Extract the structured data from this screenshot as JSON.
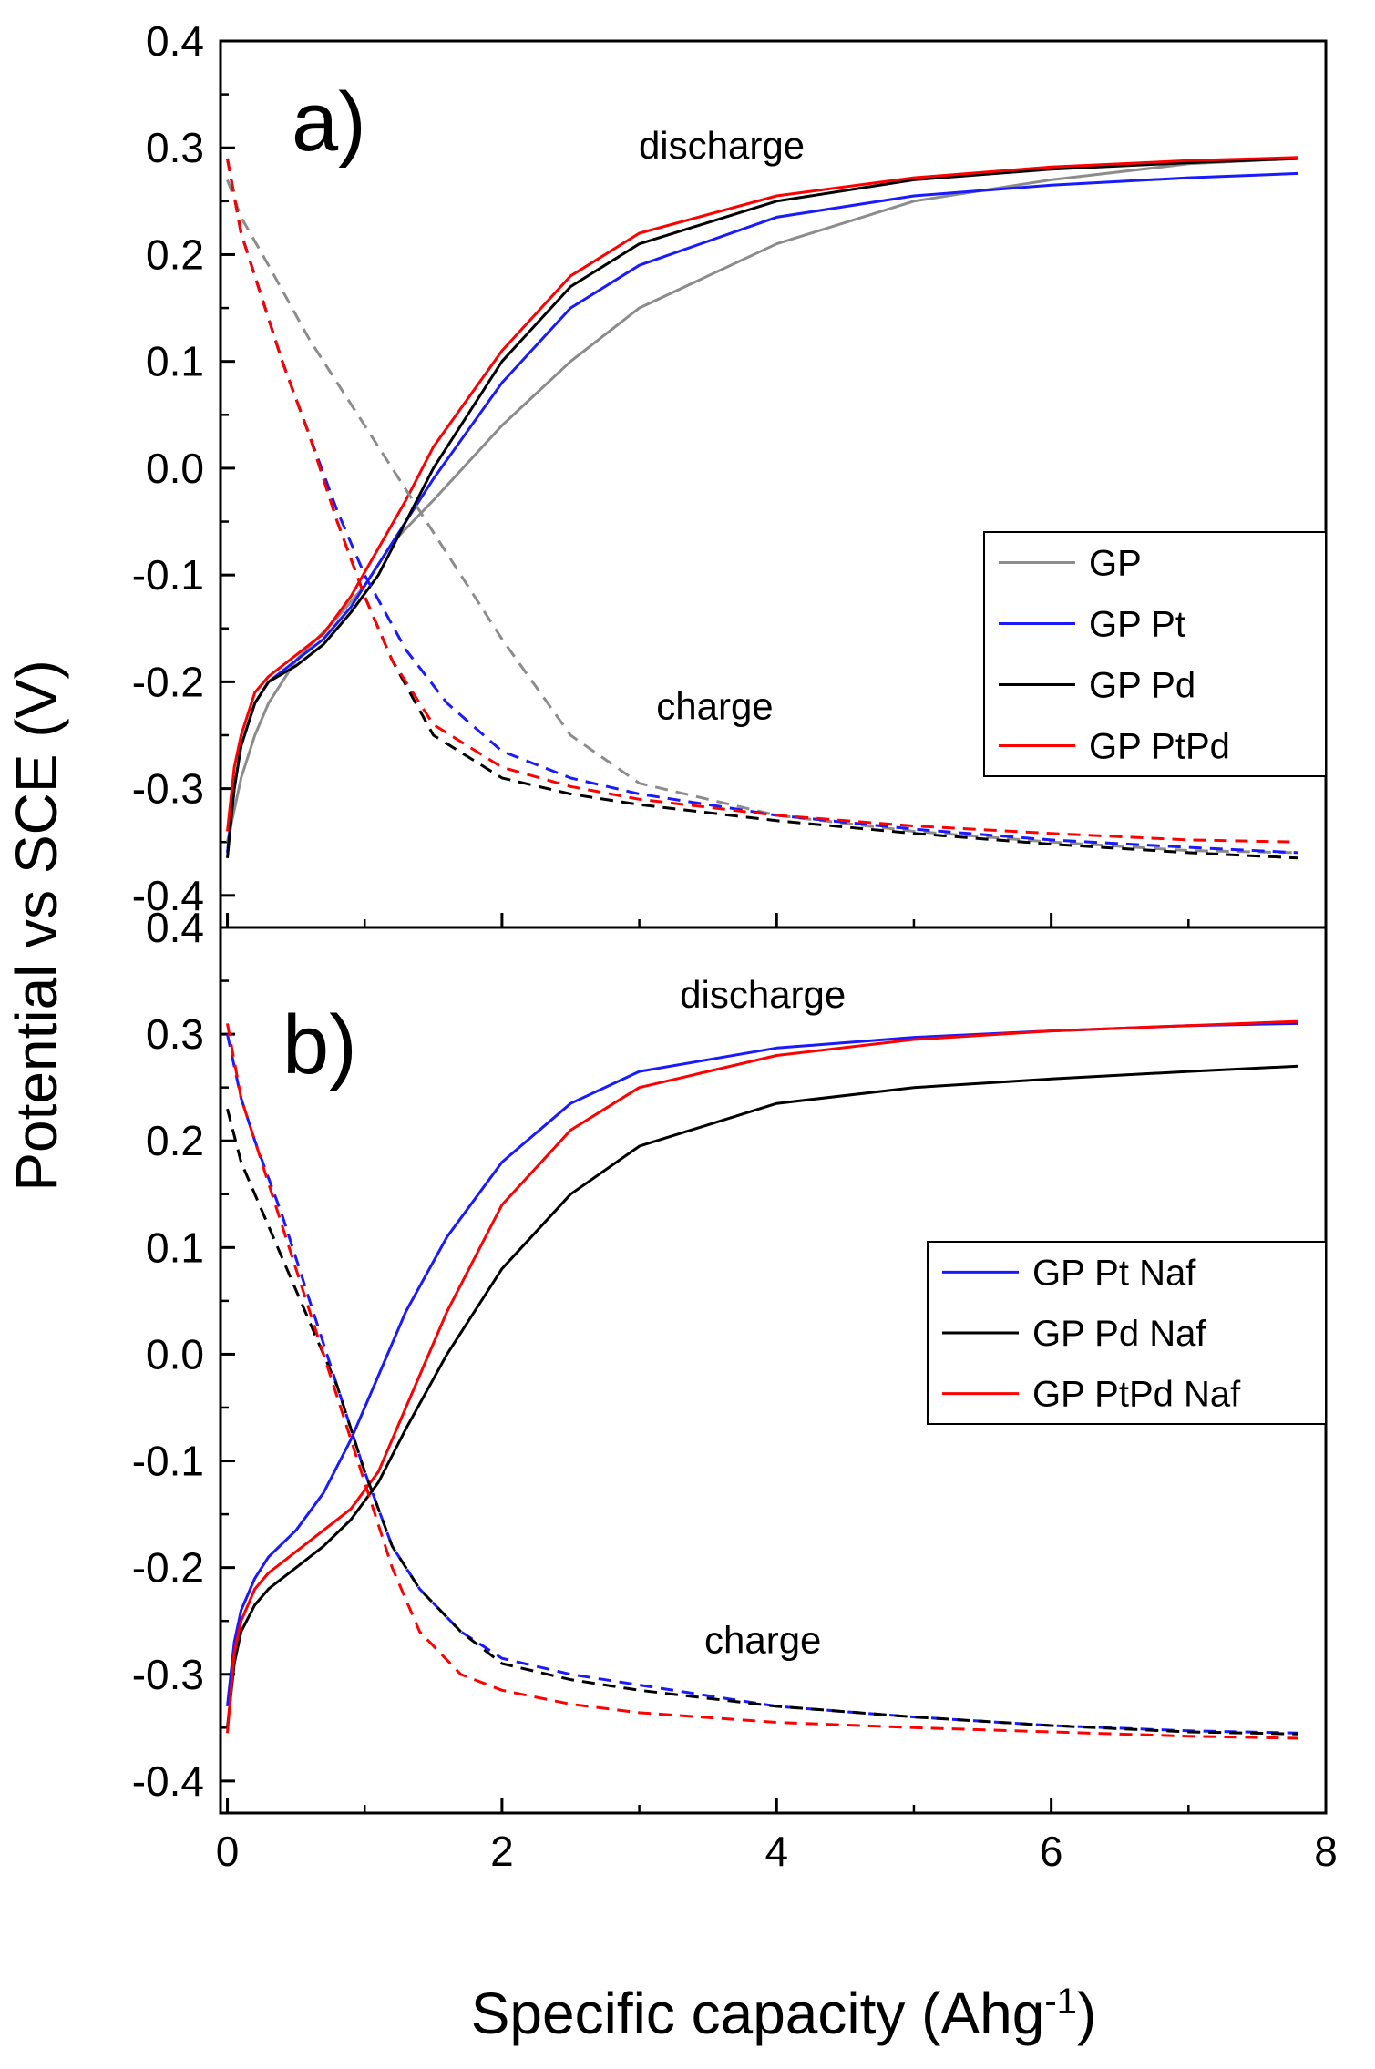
{
  "colors": {
    "GP": "#8c8c8c",
    "Pt": "#1a1aff",
    "Pd": "#000000",
    "PtPd": "#ff0000"
  },
  "chart_data": [
    {
      "type": "line",
      "panel_label": "a)",
      "xlabel_main": "Specific capacity (Ahg",
      "xlabel_sup": "-1",
      "xlabel_end": ")",
      "ylabel": "Potential vs SCE (V)",
      "xlim": [
        -0.05,
        8
      ],
      "ylim": [
        -0.43,
        0.4
      ],
      "x_ticks": [
        "0",
        "2",
        "4",
        "6",
        "8"
      ],
      "y_ticks": [
        "0.4",
        "0.3",
        "0.2",
        "0.1",
        "0.0",
        "-0.1",
        "-0.2",
        "-0.3",
        "-0.4"
      ],
      "annotations": [
        {
          "text": "discharge",
          "x": 3.6,
          "y": 0.29
        },
        {
          "text": "charge",
          "x": 3.55,
          "y": -0.235
        }
      ],
      "legend_position": "right",
      "series": [
        {
          "name": "GP",
          "color_key": "GP",
          "style": "solid",
          "x": [
            0,
            0.05,
            0.1,
            0.2,
            0.3,
            0.5,
            0.8,
            1.0,
            1.2,
            1.5,
            2.0,
            2.5,
            3.0,
            4.0,
            5.0,
            6.0,
            7.0,
            7.8
          ],
          "y": [
            -0.35,
            -0.32,
            -0.29,
            -0.25,
            -0.22,
            -0.18,
            -0.14,
            -0.11,
            -0.07,
            -0.03,
            0.04,
            0.1,
            0.15,
            0.21,
            0.25,
            0.27,
            0.285,
            0.29
          ]
        },
        {
          "name": "GP Pt",
          "color_key": "Pt",
          "style": "solid",
          "x": [
            0,
            0.05,
            0.1,
            0.2,
            0.3,
            0.5,
            0.7,
            0.9,
            1.1,
            1.3,
            1.5,
            2.0,
            2.5,
            3.0,
            4.0,
            5.0,
            6.0,
            7.0,
            7.8
          ],
          "y": [
            -0.36,
            -0.3,
            -0.26,
            -0.22,
            -0.2,
            -0.18,
            -0.16,
            -0.13,
            -0.09,
            -0.05,
            -0.01,
            0.08,
            0.15,
            0.19,
            0.235,
            0.255,
            0.265,
            0.272,
            0.276
          ]
        },
        {
          "name": "GP Pd",
          "color_key": "Pd",
          "style": "solid",
          "x": [
            0,
            0.05,
            0.1,
            0.2,
            0.3,
            0.5,
            0.7,
            0.9,
            1.1,
            1.3,
            1.5,
            2.0,
            2.5,
            3.0,
            4.0,
            5.0,
            6.0,
            7.0,
            7.8
          ],
          "y": [
            -0.365,
            -0.3,
            -0.26,
            -0.22,
            -0.2,
            -0.185,
            -0.165,
            -0.135,
            -0.1,
            -0.05,
            0.0,
            0.1,
            0.17,
            0.21,
            0.25,
            0.27,
            0.28,
            0.286,
            0.29
          ]
        },
        {
          "name": "GP PtPd",
          "color_key": "PtPd",
          "style": "solid",
          "x": [
            0,
            0.05,
            0.1,
            0.2,
            0.3,
            0.5,
            0.7,
            0.9,
            1.1,
            1.3,
            1.5,
            2.0,
            2.5,
            3.0,
            4.0,
            5.0,
            6.0,
            7.0,
            7.8
          ],
          "y": [
            -0.34,
            -0.28,
            -0.25,
            -0.21,
            -0.195,
            -0.175,
            -0.155,
            -0.12,
            -0.075,
            -0.03,
            0.02,
            0.11,
            0.18,
            0.22,
            0.255,
            0.272,
            0.282,
            0.288,
            0.291
          ]
        },
        {
          "name": "",
          "color_key": "GP",
          "style": "dashed",
          "x": [
            0,
            0.1,
            0.3,
            0.6,
            1.0,
            1.5,
            2.0,
            2.5,
            3.0,
            4.0,
            5.0,
            6.0,
            7.0,
            7.8
          ],
          "y": [
            0.27,
            0.235,
            0.19,
            0.12,
            0.04,
            -0.06,
            -0.16,
            -0.25,
            -0.295,
            -0.325,
            -0.34,
            -0.35,
            -0.358,
            -0.36
          ]
        },
        {
          "name": "",
          "color_key": "Pt",
          "style": "dashed",
          "x": [
            0,
            0.1,
            0.2,
            0.4,
            0.6,
            0.8,
            1.0,
            1.3,
            1.6,
            2.0,
            2.5,
            3.0,
            4.0,
            5.0,
            6.0,
            7.0,
            7.8
          ],
          "y": [
            0.29,
            0.22,
            0.18,
            0.1,
            0.03,
            -0.04,
            -0.1,
            -0.17,
            -0.22,
            -0.265,
            -0.29,
            -0.305,
            -0.325,
            -0.338,
            -0.348,
            -0.355,
            -0.36
          ]
        },
        {
          "name": "",
          "color_key": "Pd",
          "style": "dashed",
          "x": [
            0,
            0.1,
            0.2,
            0.4,
            0.6,
            0.8,
            1.0,
            1.2,
            1.5,
            2.0,
            2.5,
            3.0,
            4.0,
            5.0,
            6.0,
            7.0,
            7.8
          ],
          "y": [
            0.29,
            0.22,
            0.18,
            0.1,
            0.03,
            -0.05,
            -0.12,
            -0.18,
            -0.25,
            -0.29,
            -0.305,
            -0.315,
            -0.33,
            -0.342,
            -0.352,
            -0.36,
            -0.365
          ]
        },
        {
          "name": "",
          "color_key": "PtPd",
          "style": "dashed",
          "x": [
            0,
            0.1,
            0.2,
            0.4,
            0.6,
            0.8,
            1.0,
            1.2,
            1.5,
            2.0,
            2.5,
            3.0,
            4.0,
            5.0,
            6.0,
            7.0,
            7.8
          ],
          "y": [
            0.29,
            0.22,
            0.18,
            0.1,
            0.03,
            -0.05,
            -0.12,
            -0.18,
            -0.24,
            -0.28,
            -0.298,
            -0.31,
            -0.325,
            -0.335,
            -0.342,
            -0.348,
            -0.35
          ]
        }
      ]
    },
    {
      "type": "line",
      "panel_label": "b)",
      "xlim": [
        -0.05,
        8
      ],
      "ylim": [
        -0.43,
        0.4
      ],
      "x_ticks": [
        "0",
        "2",
        "4",
        "6",
        "8"
      ],
      "y_ticks": [
        "0.4",
        "0.3",
        "0.2",
        "0.1",
        "0.0",
        "-0.1",
        "-0.2",
        "-0.3",
        "-0.4"
      ],
      "annotations": [
        {
          "text": "discharge",
          "x": 3.9,
          "y": 0.325
        },
        {
          "text": "charge",
          "x": 3.9,
          "y": -0.28
        }
      ],
      "legend_position": "right",
      "series": [
        {
          "name": "GP Pt Naf",
          "color_key": "Pt",
          "style": "solid",
          "x": [
            0,
            0.05,
            0.1,
            0.2,
            0.3,
            0.5,
            0.7,
            0.9,
            1.1,
            1.3,
            1.6,
            2.0,
            2.5,
            3.0,
            4.0,
            5.0,
            6.0,
            7.0,
            7.8
          ],
          "y": [
            -0.33,
            -0.27,
            -0.24,
            -0.21,
            -0.19,
            -0.165,
            -0.13,
            -0.08,
            -0.02,
            0.04,
            0.11,
            0.18,
            0.235,
            0.265,
            0.287,
            0.297,
            0.303,
            0.308,
            0.31
          ]
        },
        {
          "name": "GP Pd Naf",
          "color_key": "Pd",
          "style": "solid",
          "x": [
            0,
            0.05,
            0.1,
            0.2,
            0.3,
            0.5,
            0.7,
            0.9,
            1.1,
            1.3,
            1.6,
            2.0,
            2.5,
            3.0,
            4.0,
            5.0,
            6.0,
            7.0,
            7.8
          ],
          "y": [
            -0.35,
            -0.29,
            -0.26,
            -0.235,
            -0.22,
            -0.2,
            -0.18,
            -0.155,
            -0.12,
            -0.07,
            0.0,
            0.08,
            0.15,
            0.195,
            0.235,
            0.25,
            0.258,
            0.265,
            0.27
          ]
        },
        {
          "name": "GP PtPd Naf",
          "color_key": "PtPd",
          "style": "solid",
          "x": [
            0,
            0.05,
            0.1,
            0.2,
            0.3,
            0.5,
            0.7,
            0.9,
            1.1,
            1.3,
            1.6,
            2.0,
            2.5,
            3.0,
            4.0,
            5.0,
            6.0,
            7.0,
            7.8
          ],
          "y": [
            -0.355,
            -0.28,
            -0.25,
            -0.22,
            -0.205,
            -0.185,
            -0.165,
            -0.145,
            -0.11,
            -0.05,
            0.04,
            0.14,
            0.21,
            0.25,
            0.28,
            0.295,
            0.303,
            0.308,
            0.312
          ]
        },
        {
          "name": "",
          "color_key": "Pt",
          "style": "dashed",
          "x": [
            0,
            0.1,
            0.2,
            0.4,
            0.6,
            0.8,
            1.0,
            1.2,
            1.4,
            1.7,
            2.0,
            2.5,
            3.0,
            4.0,
            5.0,
            6.0,
            7.0,
            7.8
          ],
          "y": [
            0.3,
            0.24,
            0.2,
            0.13,
            0.05,
            -0.03,
            -0.11,
            -0.18,
            -0.22,
            -0.26,
            -0.285,
            -0.3,
            -0.31,
            -0.33,
            -0.34,
            -0.348,
            -0.353,
            -0.355
          ]
        },
        {
          "name": "",
          "color_key": "Pd",
          "style": "dashed",
          "x": [
            0,
            0.1,
            0.2,
            0.4,
            0.6,
            0.8,
            1.0,
            1.2,
            1.4,
            1.7,
            2.0,
            2.5,
            3.0,
            4.0,
            5.0,
            6.0,
            7.0,
            7.8
          ],
          "y": [
            0.23,
            0.18,
            0.15,
            0.09,
            0.03,
            -0.03,
            -0.11,
            -0.18,
            -0.22,
            -0.26,
            -0.29,
            -0.305,
            -0.315,
            -0.33,
            -0.34,
            -0.348,
            -0.354,
            -0.356
          ]
        },
        {
          "name": "",
          "color_key": "PtPd",
          "style": "dashed",
          "x": [
            0,
            0.1,
            0.2,
            0.4,
            0.6,
            0.8,
            1.0,
            1.2,
            1.4,
            1.7,
            2.0,
            2.5,
            3.0,
            4.0,
            5.0,
            6.0,
            7.0,
            7.8
          ],
          "y": [
            0.31,
            0.24,
            0.2,
            0.12,
            0.04,
            -0.04,
            -0.12,
            -0.2,
            -0.26,
            -0.3,
            -0.315,
            -0.328,
            -0.336,
            -0.345,
            -0.35,
            -0.354,
            -0.358,
            -0.36
          ]
        }
      ]
    }
  ]
}
